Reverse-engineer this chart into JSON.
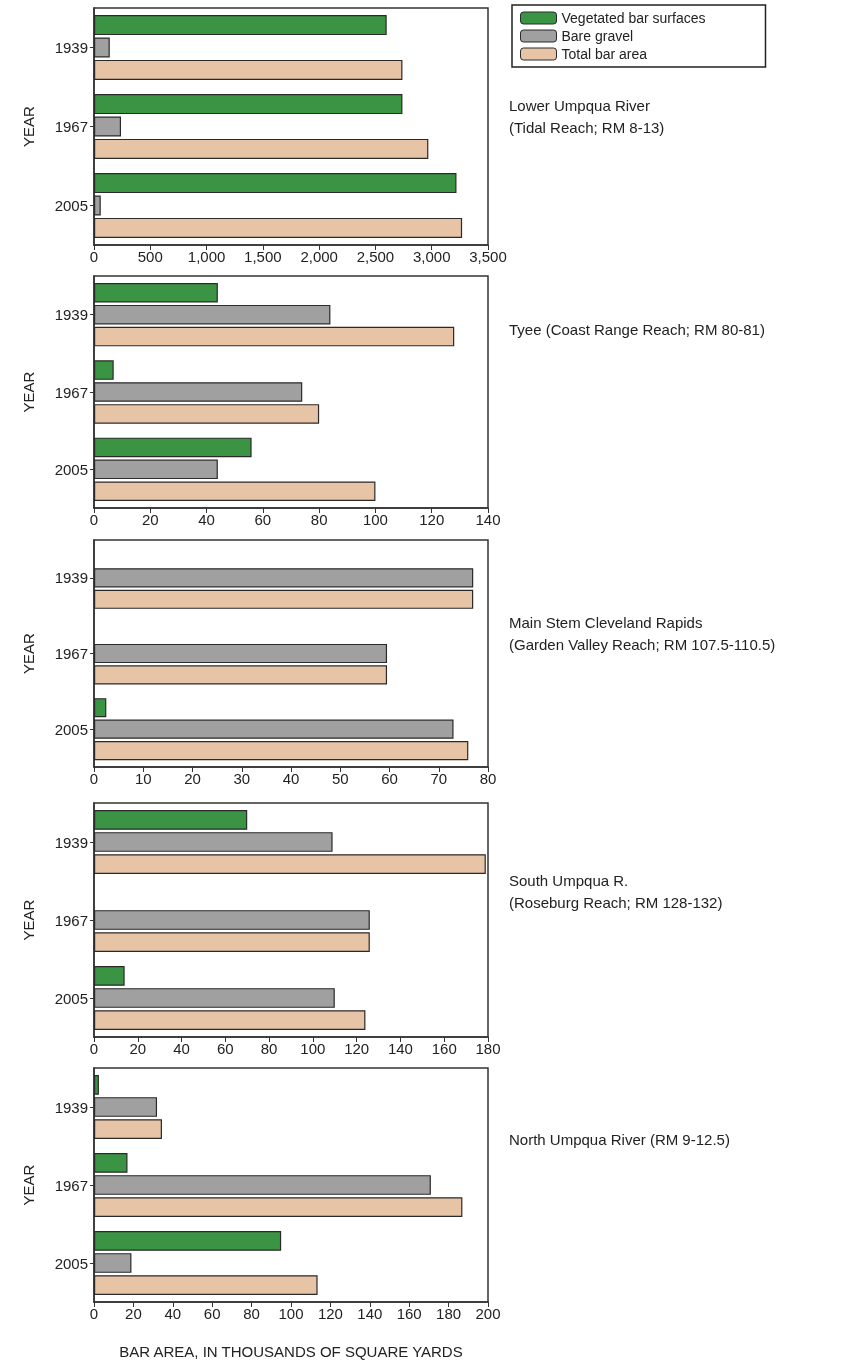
{
  "chart_data": [
    {
      "type": "bar",
      "orientation": "horizontal",
      "annotations": [
        "Lower Umpqua River",
        "(Tidal Reach; RM 8-13)"
      ],
      "ylabel": "YEAR",
      "categories": [
        "1939",
        "1967",
        "2005"
      ],
      "legend": "top right",
      "grid": false,
      "xlim": [
        0,
        3500
      ],
      "xticks": [
        0,
        500,
        {
          "value": 1000,
          "label": "1,000"
        },
        {
          "value": 1500,
          "label": "1,500"
        },
        {
          "value": 2000,
          "label": "2,000"
        },
        {
          "value": 2500,
          "label": "2,500"
        },
        {
          "value": 3000,
          "label": "3,000"
        },
        {
          "value": 3500,
          "label": "3,500"
        }
      ],
      "series": [
        {
          "name": "Vegetated bar surfaces",
          "color": "#3a9444",
          "values": [
            2600,
            2740,
            3220
          ]
        },
        {
          "name": "Bare gravel",
          "color": "#a0a0a0",
          "values": [
            140,
            240,
            60
          ]
        },
        {
          "name": "Total bar area",
          "color": "#e8c4a6",
          "values": [
            2740,
            2970,
            3270
          ]
        }
      ]
    },
    {
      "type": "bar",
      "orientation": "horizontal",
      "annotations": [
        "Tyee (Coast Range Reach; RM 80-81)"
      ],
      "ylabel": "YEAR",
      "categories": [
        "1939",
        "1967",
        "2005"
      ],
      "grid": false,
      "xlim": [
        0,
        140
      ],
      "xticks": [
        0,
        20,
        40,
        60,
        80,
        100,
        120,
        140
      ],
      "series": [
        {
          "color": "#3a9444",
          "values": [
            44,
            7,
            56
          ]
        },
        {
          "color": "#a0a0a0",
          "values": [
            84,
            74,
            44
          ]
        },
        {
          "color": "#e8c4a6",
          "values": [
            128,
            80,
            100
          ]
        }
      ]
    },
    {
      "type": "bar",
      "orientation": "horizontal",
      "annotations": [
        "Main Stem Cleveland Rapids",
        "(Garden Valley Reach; RM 107.5-110.5)"
      ],
      "ylabel": "YEAR",
      "categories": [
        "1939",
        "1967",
        "2005"
      ],
      "grid": false,
      "xlim": [
        0,
        80
      ],
      "xticks": [
        0,
        10,
        20,
        30,
        40,
        50,
        60,
        70,
        80
      ],
      "series": [
        {
          "color": "#3a9444",
          "values": [
            null,
            null,
            2.5
          ]
        },
        {
          "color": "#a0a0a0",
          "values": [
            77,
            59.5,
            73
          ]
        },
        {
          "color": "#e8c4a6",
          "values": [
            77,
            59.5,
            76
          ]
        }
      ]
    },
    {
      "type": "bar",
      "orientation": "horizontal",
      "annotations": [
        "South Umpqua R.",
        "(Roseburg Reach; RM 128-132)"
      ],
      "ylabel": "YEAR",
      "categories": [
        "1939",
        "1967",
        "2005"
      ],
      "grid": false,
      "xlim": [
        0,
        180
      ],
      "xticks": [
        0,
        20,
        40,
        60,
        80,
        100,
        120,
        140,
        160,
        180
      ],
      "series": [
        {
          "color": "#3a9444",
          "values": [
            70,
            null,
            14
          ]
        },
        {
          "color": "#a0a0a0",
          "values": [
            109,
            126,
            110
          ]
        },
        {
          "color": "#e8c4a6",
          "values": [
            179,
            126,
            124
          ]
        }
      ]
    },
    {
      "type": "bar",
      "orientation": "horizontal",
      "annotations": [
        "North Umpqua River (RM 9-12.5)"
      ],
      "ylabel": "YEAR",
      "xlabel": "BAR AREA, IN THOUSANDS OF SQUARE YARDS",
      "categories": [
        "1939",
        "1967",
        "2005"
      ],
      "grid": false,
      "xlim": [
        0,
        200
      ],
      "xticks": [
        0,
        20,
        40,
        60,
        80,
        100,
        120,
        140,
        160,
        180,
        200
      ],
      "series": [
        {
          "color": "#3a9444",
          "values": [
            2.5,
            17,
            95
          ]
        },
        {
          "color": "#a0a0a0",
          "values": [
            32,
            171,
            19
          ]
        },
        {
          "color": "#e8c4a6",
          "values": [
            34.5,
            187,
            113.5
          ]
        }
      ]
    }
  ]
}
